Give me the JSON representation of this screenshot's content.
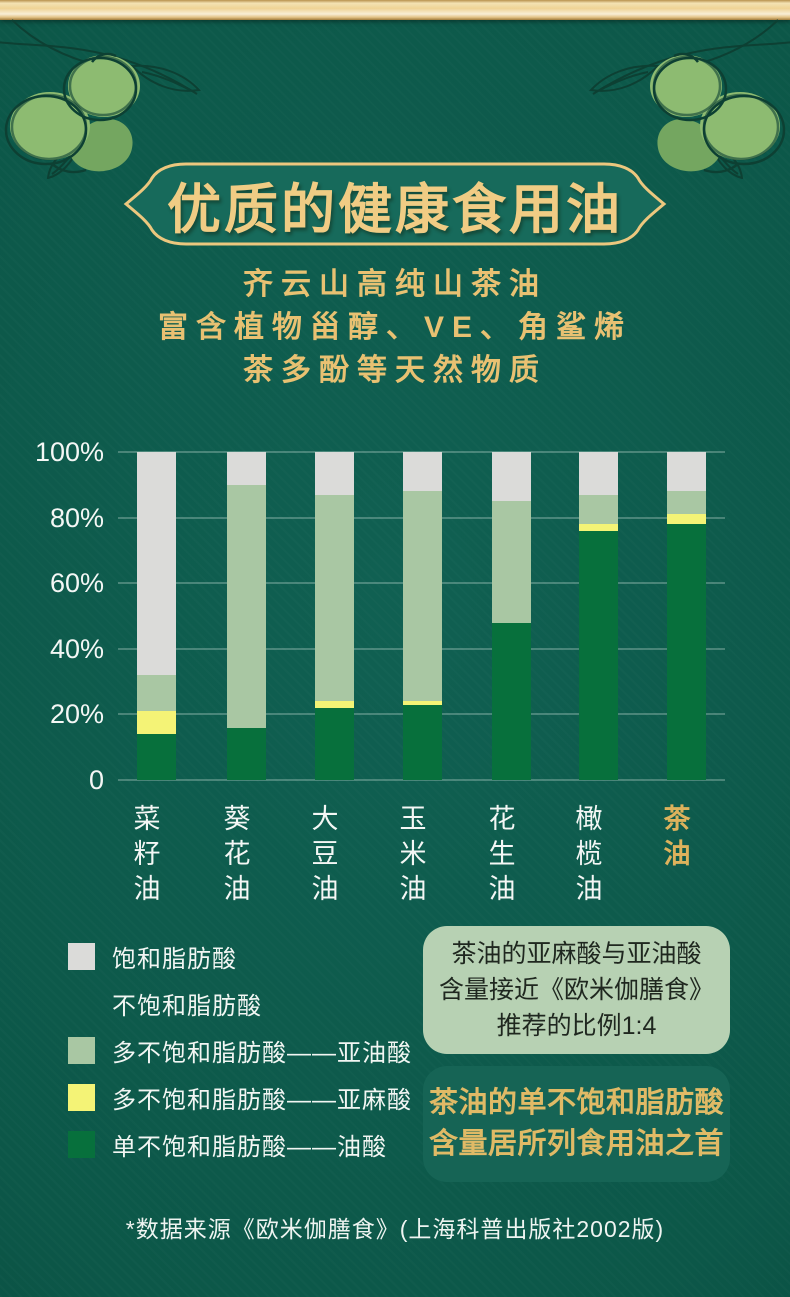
{
  "header": {
    "title": "优质的健康食用油",
    "subtitle_lines": [
      "齐云山高纯山茶油",
      "富含植物甾醇、VE、角鲨烯",
      "茶多酚等天然物质"
    ]
  },
  "colors": {
    "background": "#0C5748",
    "banner_fill": "#176A5B",
    "gold_border": "#ECC77E",
    "title_gold": "#F0CC84",
    "saturated": "#DBDBD9",
    "linoleic": "#A9C7A3",
    "linolenic": "#F4F376",
    "oleic": "#07703C",
    "highlight_label": "#DDB25C",
    "callout1_bg": "#B7D1B3",
    "callout2_bg": "#166455"
  },
  "chart_data": {
    "type": "bar",
    "stacked": true,
    "percent": true,
    "grid": true,
    "legend_position": "bottom-left",
    "categories": [
      "菜籽油",
      "葵花油",
      "大豆油",
      "玉米油",
      "花生油",
      "橄榄油",
      "茶油"
    ],
    "highlighted_category": "茶油",
    "y_ticks": [
      "100%",
      "80%",
      "60%",
      "40%",
      "20%",
      "0"
    ],
    "ylim": [
      0,
      100
    ],
    "series": [
      {
        "name": "单不饱和脂肪酸——油酸",
        "color_key": "oleic",
        "values": [
          14,
          16,
          22,
          23,
          48,
          76,
          78
        ]
      },
      {
        "name": "多不饱和脂肪酸——亚麻酸",
        "color_key": "linolenic",
        "values": [
          7,
          0,
          2,
          1,
          0,
          2,
          3
        ]
      },
      {
        "name": "多不饱和脂肪酸——亚油酸",
        "color_key": "linoleic",
        "values": [
          11,
          74,
          63,
          64,
          37,
          9,
          7
        ]
      },
      {
        "name": "饱和脂肪酸",
        "color_key": "saturated",
        "values": [
          68,
          10,
          13,
          12,
          15,
          13,
          12
        ]
      }
    ]
  },
  "legend": {
    "items": [
      {
        "label": "饱和脂肪酸",
        "color_key": "saturated"
      },
      {
        "label": "不饱和脂肪酸",
        "color_key": null
      },
      {
        "label": "多不饱和脂肪酸——亚油酸",
        "color_key": "linoleic"
      },
      {
        "label": "多不饱和脂肪酸——亚麻酸",
        "color_key": "linolenic"
      },
      {
        "label": "单不饱和脂肪酸——油酸",
        "color_key": "oleic"
      }
    ]
  },
  "callouts": {
    "ratio_note": {
      "lines": [
        "茶油的亚麻酸与亚油酸",
        "含量接近《欧米伽膳食》",
        "推荐的比例1:4"
      ]
    },
    "rank_note": {
      "lines": [
        "茶油的单不饱和脂肪酸",
        "含量居所列食用油之首"
      ]
    }
  },
  "footer": {
    "source_note": "*数据来源《欧米伽膳食》(上海科普出版社2002版)"
  }
}
